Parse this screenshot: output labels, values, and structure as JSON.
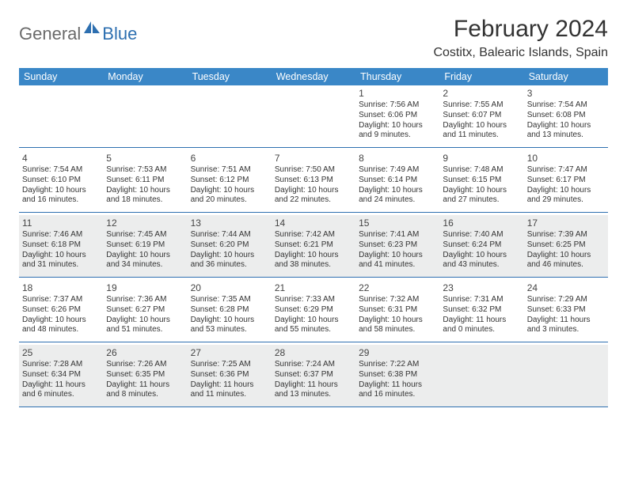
{
  "brand": {
    "text1": "General",
    "text2": "Blue"
  },
  "title": "February 2024",
  "location": "Costitx, Balearic Islands, Spain",
  "colors": {
    "header_bg": "#3a87c7",
    "border": "#2d6fb0",
    "shaded": "#eceded",
    "text": "#333333",
    "logo_gray": "#6a6a6a",
    "logo_blue": "#2d6fb0"
  },
  "dayHeaders": [
    "Sunday",
    "Monday",
    "Tuesday",
    "Wednesday",
    "Thursday",
    "Friday",
    "Saturday"
  ],
  "weeks": [
    [
      {
        "n": "",
        "sr": "",
        "ss": "",
        "dl": ""
      },
      {
        "n": "",
        "sr": "",
        "ss": "",
        "dl": ""
      },
      {
        "n": "",
        "sr": "",
        "ss": "",
        "dl": ""
      },
      {
        "n": "",
        "sr": "",
        "ss": "",
        "dl": ""
      },
      {
        "n": "1",
        "sr": "Sunrise: 7:56 AM",
        "ss": "Sunset: 6:06 PM",
        "dl": "Daylight: 10 hours and 9 minutes."
      },
      {
        "n": "2",
        "sr": "Sunrise: 7:55 AM",
        "ss": "Sunset: 6:07 PM",
        "dl": "Daylight: 10 hours and 11 minutes."
      },
      {
        "n": "3",
        "sr": "Sunrise: 7:54 AM",
        "ss": "Sunset: 6:08 PM",
        "dl": "Daylight: 10 hours and 13 minutes."
      }
    ],
    [
      {
        "n": "4",
        "sr": "Sunrise: 7:54 AM",
        "ss": "Sunset: 6:10 PM",
        "dl": "Daylight: 10 hours and 16 minutes."
      },
      {
        "n": "5",
        "sr": "Sunrise: 7:53 AM",
        "ss": "Sunset: 6:11 PM",
        "dl": "Daylight: 10 hours and 18 minutes."
      },
      {
        "n": "6",
        "sr": "Sunrise: 7:51 AM",
        "ss": "Sunset: 6:12 PM",
        "dl": "Daylight: 10 hours and 20 minutes."
      },
      {
        "n": "7",
        "sr": "Sunrise: 7:50 AM",
        "ss": "Sunset: 6:13 PM",
        "dl": "Daylight: 10 hours and 22 minutes."
      },
      {
        "n": "8",
        "sr": "Sunrise: 7:49 AM",
        "ss": "Sunset: 6:14 PM",
        "dl": "Daylight: 10 hours and 24 minutes."
      },
      {
        "n": "9",
        "sr": "Sunrise: 7:48 AM",
        "ss": "Sunset: 6:15 PM",
        "dl": "Daylight: 10 hours and 27 minutes."
      },
      {
        "n": "10",
        "sr": "Sunrise: 7:47 AM",
        "ss": "Sunset: 6:17 PM",
        "dl": "Daylight: 10 hours and 29 minutes."
      }
    ],
    [
      {
        "n": "11",
        "sr": "Sunrise: 7:46 AM",
        "ss": "Sunset: 6:18 PM",
        "dl": "Daylight: 10 hours and 31 minutes."
      },
      {
        "n": "12",
        "sr": "Sunrise: 7:45 AM",
        "ss": "Sunset: 6:19 PM",
        "dl": "Daylight: 10 hours and 34 minutes."
      },
      {
        "n": "13",
        "sr": "Sunrise: 7:44 AM",
        "ss": "Sunset: 6:20 PM",
        "dl": "Daylight: 10 hours and 36 minutes."
      },
      {
        "n": "14",
        "sr": "Sunrise: 7:42 AM",
        "ss": "Sunset: 6:21 PM",
        "dl": "Daylight: 10 hours and 38 minutes."
      },
      {
        "n": "15",
        "sr": "Sunrise: 7:41 AM",
        "ss": "Sunset: 6:23 PM",
        "dl": "Daylight: 10 hours and 41 minutes."
      },
      {
        "n": "16",
        "sr": "Sunrise: 7:40 AM",
        "ss": "Sunset: 6:24 PM",
        "dl": "Daylight: 10 hours and 43 minutes."
      },
      {
        "n": "17",
        "sr": "Sunrise: 7:39 AM",
        "ss": "Sunset: 6:25 PM",
        "dl": "Daylight: 10 hours and 46 minutes."
      }
    ],
    [
      {
        "n": "18",
        "sr": "Sunrise: 7:37 AM",
        "ss": "Sunset: 6:26 PM",
        "dl": "Daylight: 10 hours and 48 minutes."
      },
      {
        "n": "19",
        "sr": "Sunrise: 7:36 AM",
        "ss": "Sunset: 6:27 PM",
        "dl": "Daylight: 10 hours and 51 minutes."
      },
      {
        "n": "20",
        "sr": "Sunrise: 7:35 AM",
        "ss": "Sunset: 6:28 PM",
        "dl": "Daylight: 10 hours and 53 minutes."
      },
      {
        "n": "21",
        "sr": "Sunrise: 7:33 AM",
        "ss": "Sunset: 6:29 PM",
        "dl": "Daylight: 10 hours and 55 minutes."
      },
      {
        "n": "22",
        "sr": "Sunrise: 7:32 AM",
        "ss": "Sunset: 6:31 PM",
        "dl": "Daylight: 10 hours and 58 minutes."
      },
      {
        "n": "23",
        "sr": "Sunrise: 7:31 AM",
        "ss": "Sunset: 6:32 PM",
        "dl": "Daylight: 11 hours and 0 minutes."
      },
      {
        "n": "24",
        "sr": "Sunrise: 7:29 AM",
        "ss": "Sunset: 6:33 PM",
        "dl": "Daylight: 11 hours and 3 minutes."
      }
    ],
    [
      {
        "n": "25",
        "sr": "Sunrise: 7:28 AM",
        "ss": "Sunset: 6:34 PM",
        "dl": "Daylight: 11 hours and 6 minutes."
      },
      {
        "n": "26",
        "sr": "Sunrise: 7:26 AM",
        "ss": "Sunset: 6:35 PM",
        "dl": "Daylight: 11 hours and 8 minutes."
      },
      {
        "n": "27",
        "sr": "Sunrise: 7:25 AM",
        "ss": "Sunset: 6:36 PM",
        "dl": "Daylight: 11 hours and 11 minutes."
      },
      {
        "n": "28",
        "sr": "Sunrise: 7:24 AM",
        "ss": "Sunset: 6:37 PM",
        "dl": "Daylight: 11 hours and 13 minutes."
      },
      {
        "n": "29",
        "sr": "Sunrise: 7:22 AM",
        "ss": "Sunset: 6:38 PM",
        "dl": "Daylight: 11 hours and 16 minutes."
      },
      {
        "n": "",
        "sr": "",
        "ss": "",
        "dl": ""
      },
      {
        "n": "",
        "sr": "",
        "ss": "",
        "dl": ""
      }
    ]
  ],
  "shadedWeeks": [
    2,
    4
  ]
}
